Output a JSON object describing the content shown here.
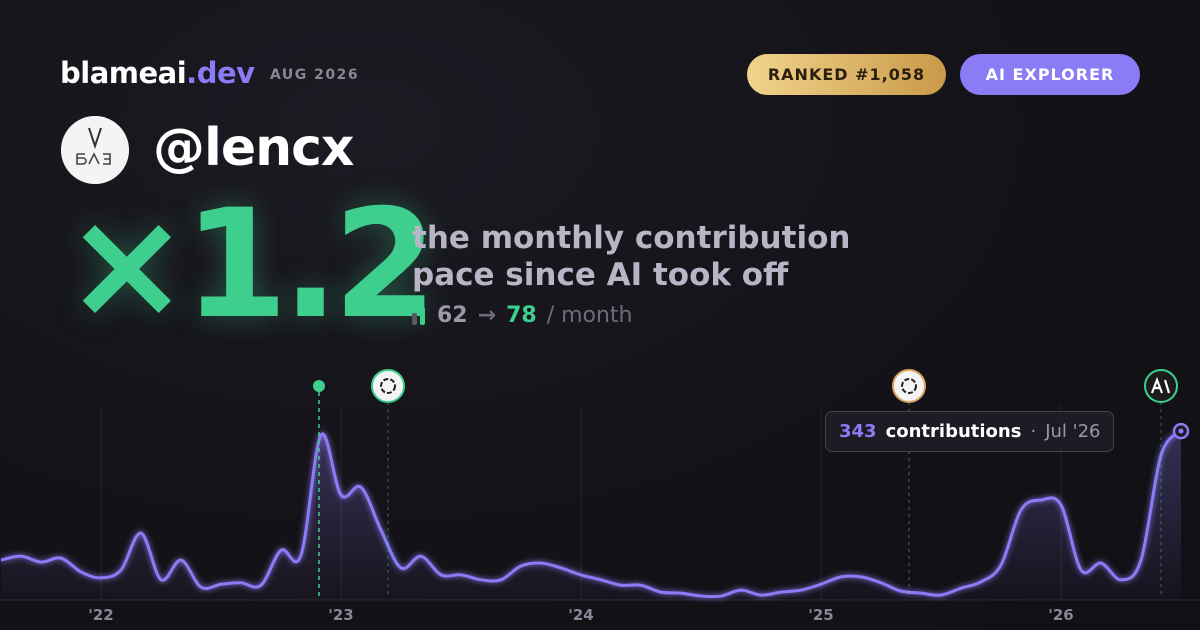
{
  "header": {
    "brand": "blameai",
    "brand_suffix": ".dev",
    "period": "AUG 2026",
    "rank_badge": "RANKED #1,058",
    "tier_badge": "AI EXPLORER"
  },
  "profile": {
    "handle": "@lencx"
  },
  "headline": {
    "multiplier": "×1.2",
    "description_lines": [
      "the monthly contribution",
      "pace since AI took off"
    ],
    "before": "62",
    "arrow": "→",
    "after": "78",
    "unit": "/ month"
  },
  "chart_data": {
    "type": "line",
    "categories": [
      null,
      null,
      null,
      null,
      null,
      "'22",
      null,
      null,
      null,
      null,
      null,
      null,
      null,
      null,
      null,
      null,
      null,
      "'23",
      null,
      null,
      null,
      null,
      null,
      null,
      null,
      null,
      null,
      null,
      null,
      "'24",
      null,
      null,
      null,
      null,
      null,
      null,
      null,
      null,
      null,
      null,
      null,
      "'25",
      null,
      null,
      null,
      null,
      null,
      null,
      null,
      null,
      null,
      null,
      null,
      "'26",
      null,
      null,
      null,
      null,
      null,
      null
    ],
    "series": [
      {
        "name": "contributions",
        "color": "#8b7cf6",
        "values": [
          81,
          89,
          77,
          85,
          57,
          45,
          61,
          136,
          41,
          81,
          26,
          32,
          35,
          30,
          101,
          91,
          335,
          213,
          229,
          142,
          65,
          89,
          51,
          51,
          41,
          41,
          69,
          75,
          65,
          51,
          41,
          30,
          30,
          16,
          14,
          8,
          8,
          20,
          10,
          16,
          20,
          32,
          47,
          47,
          35,
          18,
          14,
          10,
          24,
          37,
          71,
          183,
          203,
          193,
          61,
          75,
          41,
          81,
          294,
          343
        ]
      }
    ],
    "ylim": [
      0,
      400
    ],
    "grid": true,
    "tooltip": {
      "label": "contributions",
      "separator": "·",
      "date": "Jul '26"
    }
  }
}
